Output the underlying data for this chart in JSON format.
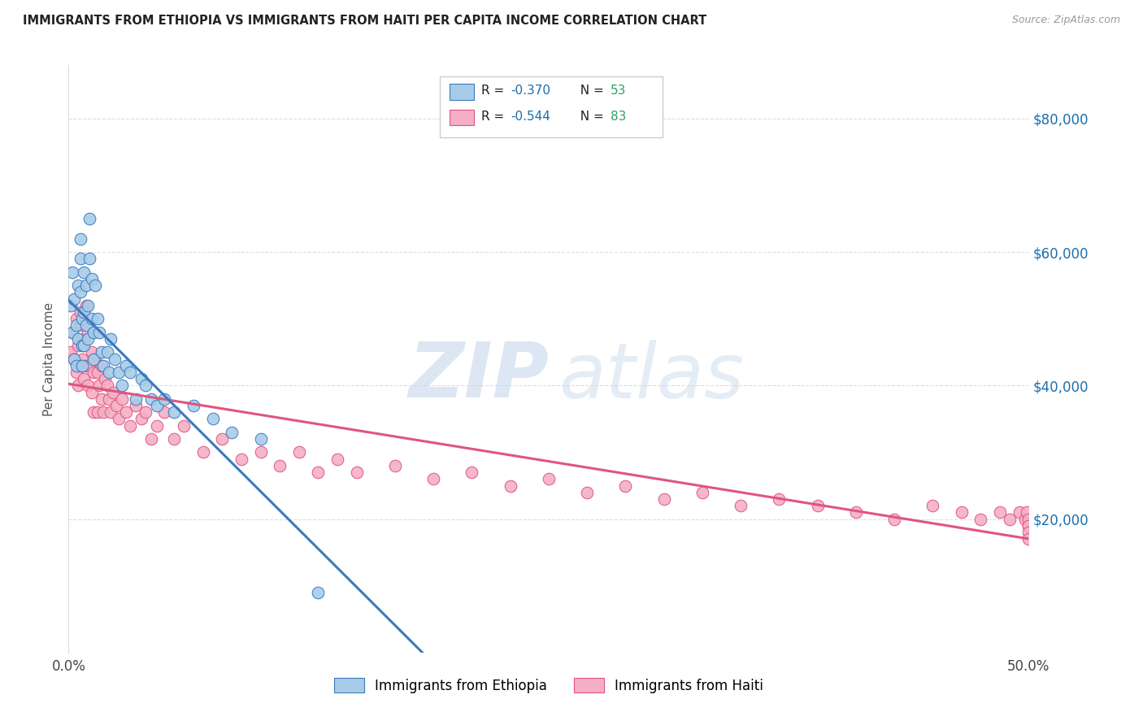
{
  "title": "IMMIGRANTS FROM ETHIOPIA VS IMMIGRANTS FROM HAITI PER CAPITA INCOME CORRELATION CHART",
  "source": "Source: ZipAtlas.com",
  "ylabel": "Per Capita Income",
  "yticks": [
    20000,
    40000,
    60000,
    80000
  ],
  "ytick_labels": [
    "$20,000",
    "$40,000",
    "$60,000",
    "$80,000"
  ],
  "xlim": [
    0.0,
    0.5
  ],
  "ylim": [
    0,
    88000
  ],
  "legend_r1": "-0.370",
  "legend_n1": "53",
  "legend_r2": "-0.544",
  "legend_n2": "83",
  "legend_label1": "Immigrants from Ethiopia",
  "legend_label2": "Immigrants from Haiti",
  "blue_color": "#a8cce8",
  "pink_color": "#f4afc5",
  "blue_line_color": "#3a7abf",
  "pink_line_color": "#e05580",
  "r_color": "#1a6faf",
  "n_color": "#2ca25f",
  "watermark_zip": "ZIP",
  "watermark_atlas": "atlas",
  "ethiopia_x": [
    0.001,
    0.002,
    0.002,
    0.003,
    0.003,
    0.004,
    0.004,
    0.005,
    0.005,
    0.006,
    0.006,
    0.006,
    0.007,
    0.007,
    0.007,
    0.008,
    0.008,
    0.008,
    0.009,
    0.009,
    0.01,
    0.01,
    0.011,
    0.011,
    0.012,
    0.012,
    0.013,
    0.013,
    0.014,
    0.015,
    0.016,
    0.017,
    0.018,
    0.02,
    0.021,
    0.022,
    0.024,
    0.026,
    0.028,
    0.03,
    0.032,
    0.035,
    0.038,
    0.04,
    0.043,
    0.046,
    0.05,
    0.055,
    0.065,
    0.075,
    0.085,
    0.1,
    0.13
  ],
  "ethiopia_y": [
    52000,
    57000,
    48000,
    53000,
    44000,
    49000,
    43000,
    55000,
    47000,
    62000,
    59000,
    54000,
    50000,
    46000,
    43000,
    57000,
    51000,
    46000,
    55000,
    49000,
    52000,
    47000,
    65000,
    59000,
    56000,
    50000,
    48000,
    44000,
    55000,
    50000,
    48000,
    45000,
    43000,
    45000,
    42000,
    47000,
    44000,
    42000,
    40000,
    43000,
    42000,
    38000,
    41000,
    40000,
    38000,
    37000,
    38000,
    36000,
    37000,
    35000,
    33000,
    32000,
    9000
  ],
  "haiti_x": [
    0.001,
    0.002,
    0.003,
    0.004,
    0.004,
    0.005,
    0.005,
    0.006,
    0.006,
    0.007,
    0.007,
    0.008,
    0.008,
    0.009,
    0.009,
    0.01,
    0.01,
    0.011,
    0.012,
    0.012,
    0.013,
    0.013,
    0.014,
    0.015,
    0.015,
    0.016,
    0.017,
    0.017,
    0.018,
    0.019,
    0.02,
    0.021,
    0.022,
    0.023,
    0.025,
    0.026,
    0.028,
    0.03,
    0.032,
    0.035,
    0.038,
    0.04,
    0.043,
    0.046,
    0.05,
    0.055,
    0.06,
    0.07,
    0.08,
    0.09,
    0.1,
    0.11,
    0.12,
    0.13,
    0.14,
    0.15,
    0.17,
    0.19,
    0.21,
    0.23,
    0.25,
    0.27,
    0.29,
    0.31,
    0.33,
    0.35,
    0.37,
    0.39,
    0.41,
    0.43,
    0.45,
    0.465,
    0.475,
    0.485,
    0.49,
    0.495,
    0.498,
    0.499,
    0.5,
    0.5,
    0.5,
    0.5,
    0.5
  ],
  "haiti_y": [
    45000,
    48000,
    44000,
    50000,
    42000,
    46000,
    40000,
    51000,
    43000,
    49000,
    44000,
    47000,
    41000,
    52000,
    43000,
    48000,
    40000,
    43000,
    45000,
    39000,
    42000,
    36000,
    44000,
    42000,
    36000,
    40000,
    38000,
    43000,
    36000,
    41000,
    40000,
    38000,
    36000,
    39000,
    37000,
    35000,
    38000,
    36000,
    34000,
    37000,
    35000,
    36000,
    32000,
    34000,
    36000,
    32000,
    34000,
    30000,
    32000,
    29000,
    30000,
    28000,
    30000,
    27000,
    29000,
    27000,
    28000,
    26000,
    27000,
    25000,
    26000,
    24000,
    25000,
    23000,
    24000,
    22000,
    23000,
    22000,
    21000,
    20000,
    22000,
    21000,
    20000,
    21000,
    20000,
    21000,
    20000,
    21000,
    19000,
    20000,
    19000,
    18000,
    17000
  ]
}
